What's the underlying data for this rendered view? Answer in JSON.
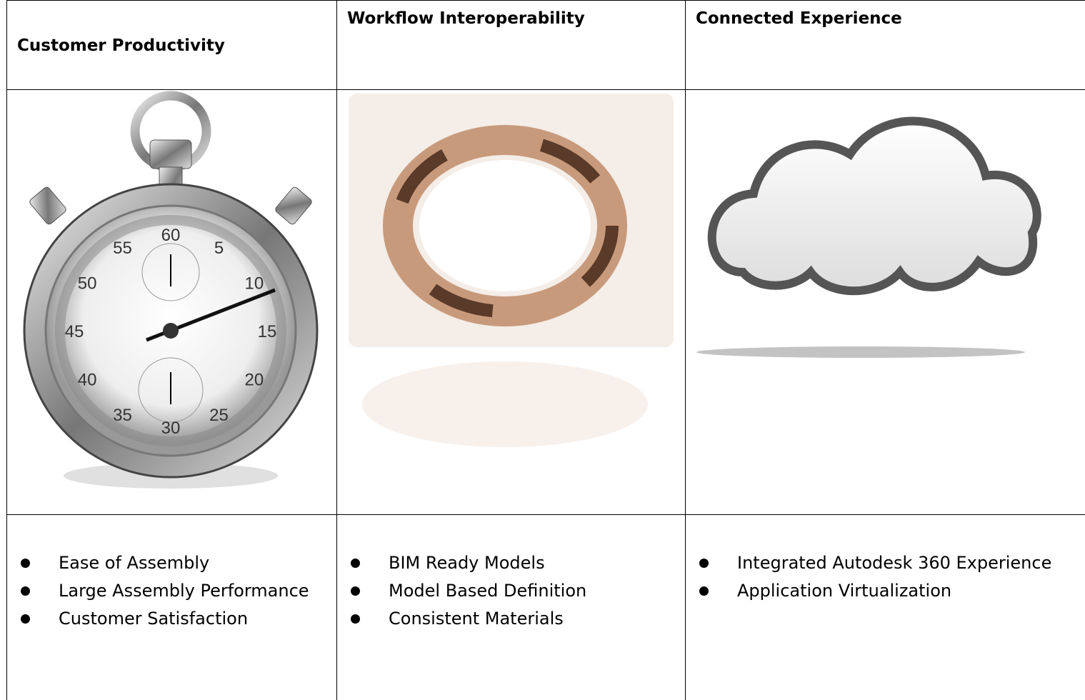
{
  "table": {
    "headers": [
      "Customer Productivity",
      "Workflow Interoperability",
      "Connected Experience"
    ],
    "bullets": [
      [
        "Ease of Assembly",
        "Large Assembly Performance",
        "Customer Satisfaction"
      ],
      [
        "BIM Ready Models",
        "Model Based Definition",
        "Consistent Materials"
      ],
      [
        "Integrated Autodesk 360 Experience",
        "Application Virtualization"
      ]
    ]
  },
  "stopwatch": {
    "dial": [
      "60",
      "5",
      "10",
      "15",
      "20",
      "25",
      "30",
      "35",
      "40",
      "45",
      "50",
      "55"
    ]
  }
}
